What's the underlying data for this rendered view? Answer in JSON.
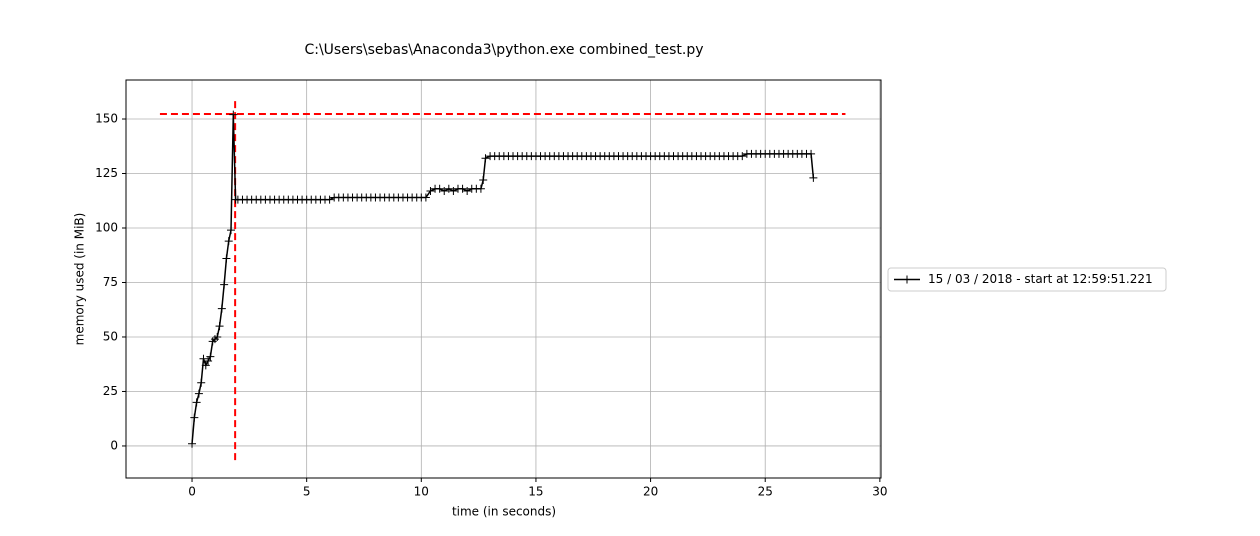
{
  "chart_data": {
    "type": "line",
    "title": "C:\\Users\\sebas\\Anaconda3\\python.exe combined_test.py",
    "x_label": "time (in seconds)",
    "y_label": "memory used (in MiB)",
    "xlim": [
      -2.88,
      30.05
    ],
    "ylim": [
      -14.7,
      167.9
    ],
    "xticks": [
      0,
      5,
      10,
      15,
      20,
      25,
      30
    ],
    "yticks": [
      0,
      25,
      50,
      75,
      100,
      125,
      150
    ],
    "grid": true,
    "legend_position": "right",
    "series": [
      {
        "name": "15 / 03 / 2018 - start at 12:59:51.221",
        "color": "#000000",
        "x": [
          0,
          0.1,
          0.2,
          0.3,
          0.4,
          0.5,
          0.6,
          0.7,
          0.8,
          0.9,
          1.0,
          1.1,
          1.2,
          1.3,
          1.4,
          1.5,
          1.6,
          1.7,
          1.8,
          1.9,
          2.0,
          2.2,
          2.4,
          2.6,
          2.8,
          3.0,
          3.2,
          3.4,
          3.6,
          3.8,
          4.0,
          4.2,
          4.4,
          4.6,
          4.8,
          5.0,
          5.2,
          5.4,
          5.6,
          5.8,
          6.0,
          6.2,
          6.4,
          6.6,
          6.8,
          7.0,
          7.2,
          7.4,
          7.6,
          7.8,
          8.0,
          8.2,
          8.4,
          8.6,
          8.8,
          9.0,
          9.2,
          9.4,
          9.6,
          9.8,
          10.0,
          10.2,
          10.4,
          10.6,
          10.8,
          11.0,
          11.2,
          11.4,
          11.6,
          11.8,
          12.0,
          12.2,
          12.4,
          12.6,
          12.7,
          12.8,
          13.0,
          13.2,
          13.4,
          13.6,
          13.8,
          14.0,
          14.2,
          14.4,
          14.6,
          14.8,
          15.0,
          15.2,
          15.4,
          15.6,
          15.8,
          16.0,
          16.2,
          16.4,
          16.6,
          16.8,
          17.0,
          17.2,
          17.4,
          17.6,
          17.8,
          18.0,
          18.2,
          18.4,
          18.6,
          18.8,
          19.0,
          19.2,
          19.4,
          19.6,
          19.8,
          20.0,
          20.2,
          20.4,
          20.6,
          20.8,
          21.0,
          21.2,
          21.4,
          21.6,
          21.8,
          22.0,
          22.2,
          22.4,
          22.6,
          22.8,
          23.0,
          23.2,
          23.4,
          23.6,
          23.8,
          24.0,
          24.2,
          24.4,
          24.6,
          24.8,
          25.0,
          25.2,
          25.4,
          25.6,
          25.8,
          26.0,
          26.2,
          26.4,
          26.6,
          26.8,
          27.0,
          27.1
        ],
        "values": [
          1,
          13,
          20,
          24,
          29,
          40,
          37,
          39,
          41,
          48,
          49,
          50,
          55,
          63,
          74,
          86,
          94,
          99,
          152,
          113,
          113,
          113,
          113,
          113,
          113,
          113,
          113,
          113,
          113,
          113,
          113,
          113,
          113,
          113,
          113,
          113,
          113,
          113,
          113,
          113,
          113,
          114,
          114,
          114,
          114,
          114,
          114,
          114,
          114,
          114,
          114,
          114,
          114,
          114,
          114,
          114,
          114,
          114,
          114,
          114,
          114,
          114,
          117,
          118,
          118,
          117,
          118,
          117,
          118,
          118,
          117,
          118,
          118,
          118,
          122,
          132,
          133,
          133,
          133,
          133,
          133,
          133,
          133,
          133,
          133,
          133,
          133,
          133,
          133,
          133,
          133,
          133,
          133,
          133,
          133,
          133,
          133,
          133,
          133,
          133,
          133,
          133,
          133,
          133,
          133,
          133,
          133,
          133,
          133,
          133,
          133,
          133,
          133,
          133,
          133,
          133,
          133,
          133,
          133,
          133,
          133,
          133,
          133,
          133,
          133,
          133,
          133,
          133,
          133,
          133,
          133,
          133,
          134,
          134,
          134,
          134,
          134,
          134,
          134,
          134,
          134,
          134,
          134,
          134,
          134,
          134,
          134,
          123
        ]
      }
    ],
    "reference_lines": [
      {
        "axis": "y",
        "value": 152.3,
        "from": -1.4,
        "to": 28.5,
        "color": "#ff0000"
      },
      {
        "axis": "x",
        "value": 1.88,
        "from": -6.5,
        "to": 160,
        "color": "#ff0000"
      }
    ]
  }
}
